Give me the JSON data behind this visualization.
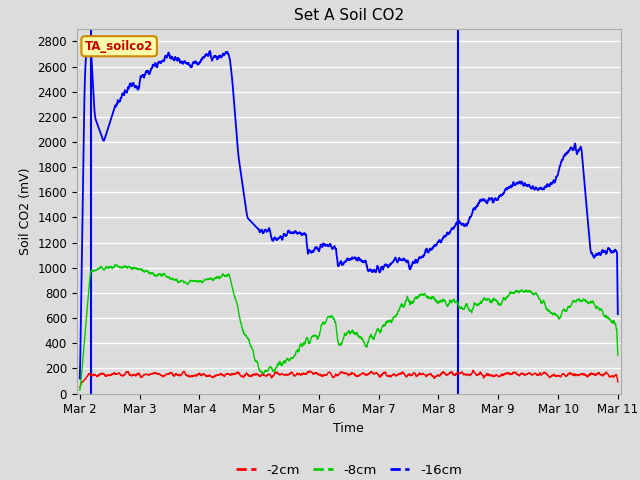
{
  "title": "Set A Soil CO2",
  "ylabel": "Soil CO2 (mV)",
  "xlabel": "Time",
  "ylim": [
    0,
    2900
  ],
  "yticks": [
    0,
    200,
    400,
    600,
    800,
    1000,
    1200,
    1400,
    1600,
    1800,
    2000,
    2200,
    2400,
    2600,
    2800
  ],
  "bg_color": "#dcdcdc",
  "plot_bg": "#dcdcdc",
  "grid_color": "#ffffff",
  "annotation_text": "TA_soilco2",
  "annotation_bg": "#ffffaa",
  "annotation_border": "#cc8800",
  "annotation_text_color": "#cc0000",
  "line_colors": {
    "2cm": "#ff0000",
    "8cm": "#00cc00",
    "16cm": "#0000ff"
  },
  "legend_labels": [
    "-2cm",
    "-8cm",
    "-16cm"
  ],
  "vline_color": "#0000ff",
  "vline_positions": [
    0.18,
    6.32
  ],
  "xtick_positions": [
    0,
    1,
    2,
    3,
    4,
    5,
    6,
    7,
    8,
    9
  ],
  "xtick_labels": [
    "Mar 2",
    "Mar 3",
    "Mar 4",
    "Mar 5",
    "Mar 6",
    "Mar 7",
    "Mar 8",
    "Mar 9",
    "Mar 10",
    "Mar 11"
  ]
}
